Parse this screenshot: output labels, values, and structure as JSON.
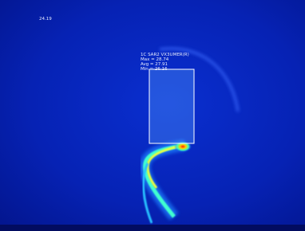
{
  "scene": {
    "corner_reading": "24.19",
    "roi": {
      "label": "1C SAR2 VX3UMER(R)",
      "max": "Max = 28.74",
      "avg": "Avg = 27.91",
      "min": "Min = 26.16"
    }
  }
}
